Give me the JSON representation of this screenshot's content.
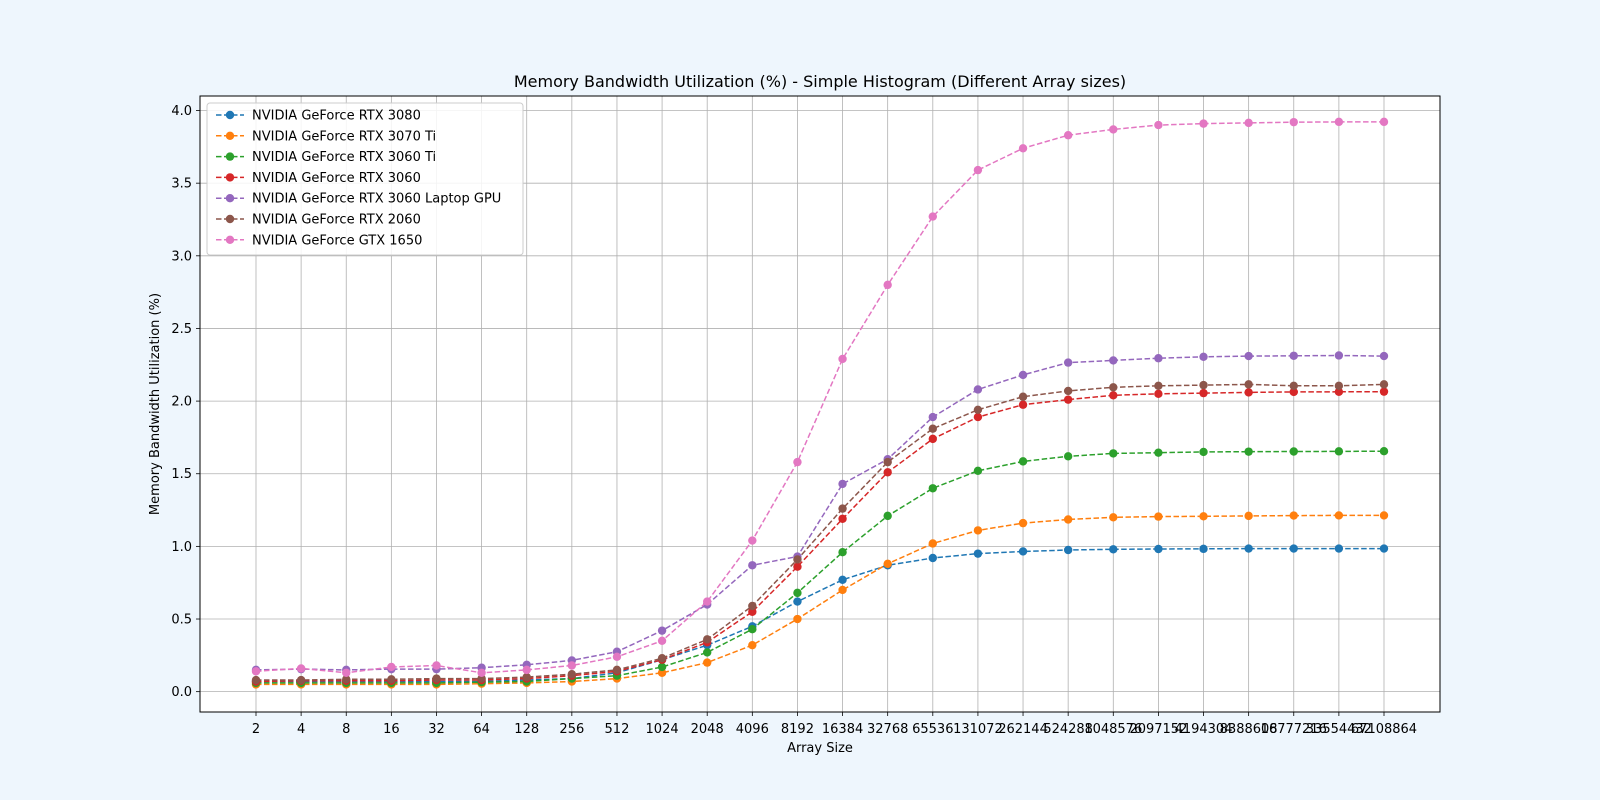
{
  "chart_data": {
    "type": "line",
    "title": "Memory Bandwidth Utilization (%) - Simple Histogram (Different Array sizes)",
    "xlabel": "Array Size",
    "ylabel": "Memory Bandwidth Utilization (%)",
    "ylim": [
      -0.14,
      4.1
    ],
    "yticks": [
      0.0,
      0.5,
      1.0,
      1.5,
      2.0,
      2.5,
      3.0,
      3.5,
      4.0
    ],
    "ytick_labels": [
      "0.0",
      "0.5",
      "1.0",
      "1.5",
      "2.0",
      "2.5",
      "3.0",
      "3.5",
      "4.0"
    ],
    "categories": [
      "2",
      "4",
      "8",
      "16",
      "32",
      "64",
      "128",
      "256",
      "512",
      "1024",
      "2048",
      "4096",
      "8192",
      "16384",
      "32768",
      "65536",
      "131072",
      "262144",
      "524288",
      "1048576",
      "2097152",
      "4194304",
      "8388608",
      "16777216",
      "33554432",
      "67108864"
    ],
    "grid": true,
    "legend_position": "top-left",
    "line_style": "dashed",
    "marker": "circle",
    "series": [
      {
        "name": "NVIDIA GeForce RTX 3080",
        "color": "#1f77b4",
        "values": [
          0.07,
          0.07,
          0.07,
          0.07,
          0.07,
          0.07,
          0.08,
          0.09,
          0.13,
          0.22,
          0.32,
          0.45,
          0.62,
          0.77,
          0.87,
          0.92,
          0.95,
          0.965,
          0.975,
          0.98,
          0.982,
          0.983,
          0.985,
          0.985,
          0.985,
          0.985
        ]
      },
      {
        "name": "NVIDIA GeForce RTX 3070 Ti",
        "color": "#ff7f0e",
        "values": [
          0.05,
          0.05,
          0.05,
          0.05,
          0.05,
          0.055,
          0.06,
          0.07,
          0.09,
          0.13,
          0.2,
          0.32,
          0.5,
          0.7,
          0.88,
          1.02,
          1.11,
          1.16,
          1.185,
          1.2,
          1.205,
          1.207,
          1.21,
          1.212,
          1.213,
          1.213
        ]
      },
      {
        "name": "NVIDIA GeForce RTX 3060 Ti",
        "color": "#2ca02c",
        "values": [
          0.06,
          0.06,
          0.06,
          0.06,
          0.06,
          0.065,
          0.07,
          0.09,
          0.11,
          0.17,
          0.27,
          0.43,
          0.68,
          0.96,
          1.21,
          1.4,
          1.52,
          1.585,
          1.62,
          1.64,
          1.645,
          1.65,
          1.652,
          1.653,
          1.654,
          1.655
        ]
      },
      {
        "name": "NVIDIA GeForce RTX 3060",
        "color": "#d62728",
        "values": [
          0.07,
          0.075,
          0.075,
          0.075,
          0.08,
          0.08,
          0.09,
          0.11,
          0.14,
          0.22,
          0.34,
          0.55,
          0.86,
          1.19,
          1.51,
          1.74,
          1.89,
          1.975,
          2.01,
          2.04,
          2.05,
          2.055,
          2.06,
          2.063,
          2.064,
          2.065
        ]
      },
      {
        "name": "NVIDIA GeForce RTX 3060 Laptop GPU",
        "color": "#9467bd",
        "values": [
          0.15,
          0.155,
          0.15,
          0.155,
          0.155,
          0.165,
          0.185,
          0.215,
          0.275,
          0.42,
          0.6,
          0.87,
          0.93,
          1.43,
          1.6,
          1.89,
          2.08,
          2.18,
          2.265,
          2.28,
          2.295,
          2.305,
          2.31,
          2.312,
          2.314,
          2.31
        ]
      },
      {
        "name": "NVIDIA GeForce RTX 2060",
        "color": "#8c564b",
        "values": [
          0.08,
          0.08,
          0.085,
          0.085,
          0.09,
          0.09,
          0.1,
          0.12,
          0.15,
          0.23,
          0.36,
          0.59,
          0.91,
          1.26,
          1.58,
          1.81,
          1.94,
          2.03,
          2.07,
          2.095,
          2.105,
          2.11,
          2.115,
          2.105,
          2.105,
          2.115
        ]
      },
      {
        "name": "NVIDIA GeForce GTX 1650",
        "color": "#e377c2",
        "values": [
          0.14,
          0.16,
          0.13,
          0.17,
          0.18,
          0.13,
          0.15,
          0.18,
          0.24,
          0.35,
          0.62,
          1.04,
          1.58,
          2.29,
          2.8,
          3.27,
          3.59,
          3.74,
          3.83,
          3.87,
          3.9,
          3.91,
          3.915,
          3.92,
          3.922,
          3.922
        ]
      }
    ]
  }
}
